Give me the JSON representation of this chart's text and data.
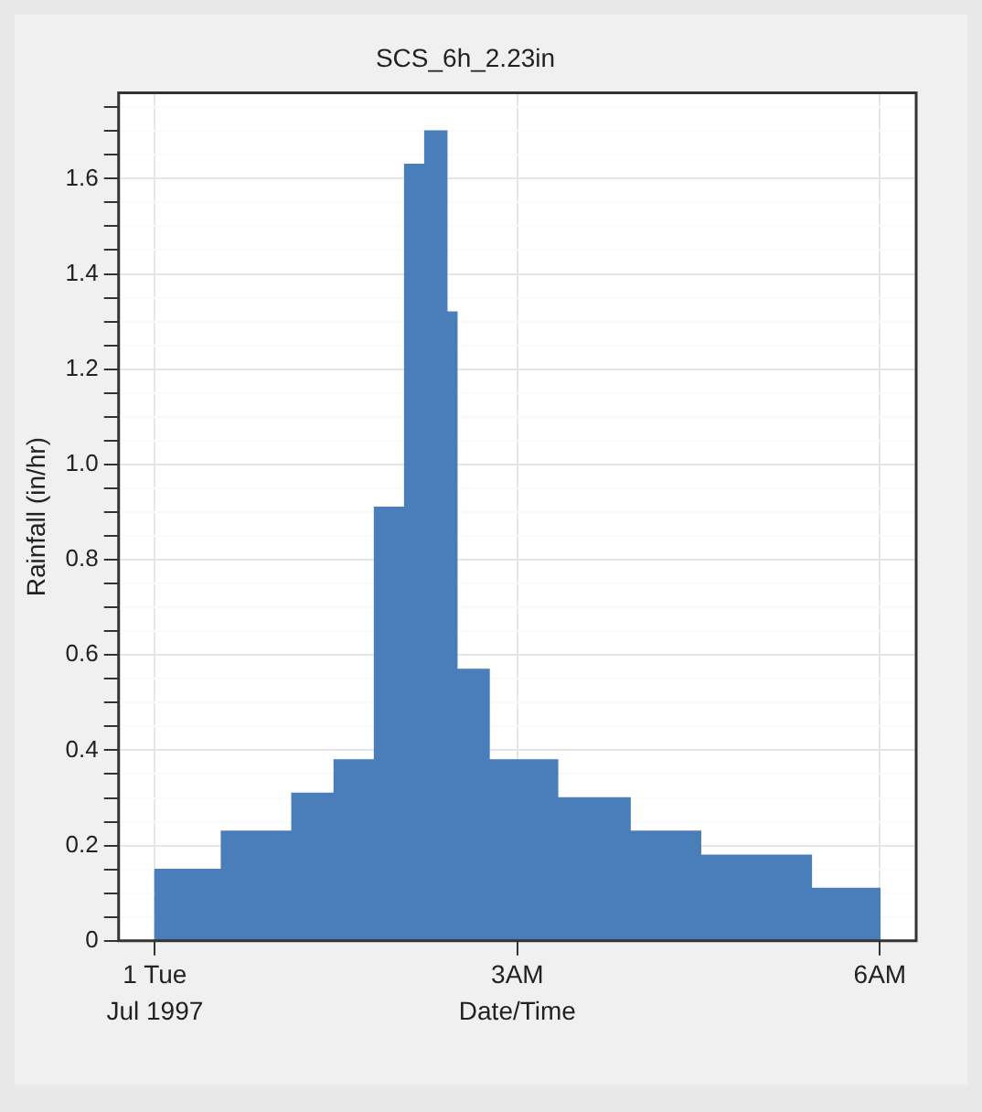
{
  "chart_data": {
    "type": "histogram",
    "title": "SCS_6h_2.23in",
    "xlabel": "Date/Time",
    "ylabel": "Rainfall (in/hr)",
    "bins": [
      "1997-07-01T00:00",
      "1997-07-01T00:33",
      "1997-07-01T01:08",
      "1997-07-01T01:29",
      "1997-07-01T01:49",
      "1997-07-01T02:04",
      "1997-07-01T02:14",
      "1997-07-01T02:25",
      "1997-07-01T02:30",
      "1997-07-01T02:46",
      "1997-07-01T03:20",
      "1997-07-01T03:56",
      "1997-07-01T04:31",
      "1997-07-01T05:26",
      "1997-07-01T06:00"
    ],
    "values": [
      0.15,
      0.23,
      0.31,
      0.38,
      0.91,
      1.63,
      1.7,
      1.32,
      0.57,
      0.38,
      0.3,
      0.23,
      0.18,
      0.11
    ],
    "color": "#4a7ebb",
    "xlim": [
      "1997-06-30T23:42",
      "1997-07-01T06:18"
    ],
    "xticks": [
      {
        "value": "1997-07-01T00:00",
        "label": "1 Tue"
      },
      {
        "value": "1997-07-01T03:00",
        "label": "3AM"
      },
      {
        "value": "1997-07-01T06:00",
        "label": "6AM"
      }
    ],
    "ylim": [
      0,
      1.78
    ],
    "yticks": [
      0,
      {
        "value": 0.05,
        "label": null
      },
      {
        "value": 0.1,
        "label": null
      },
      {
        "value": 0.15,
        "label": null
      },
      0.2,
      {
        "value": 0.25,
        "label": null
      },
      {
        "value": 0.3,
        "label": null
      },
      {
        "value": 0.35,
        "label": null
      },
      0.4,
      {
        "value": 0.45,
        "label": null
      },
      {
        "value": 0.5,
        "label": null
      },
      {
        "value": 0.55,
        "label": null
      },
      0.6,
      {
        "value": 0.65,
        "label": null
      },
      {
        "value": 0.7,
        "label": null
      },
      {
        "value": 0.75,
        "label": null
      },
      0.8,
      {
        "value": 0.85,
        "label": null
      },
      {
        "value": 0.9,
        "label": null
      },
      {
        "value": 0.95,
        "label": null
      },
      {
        "value": 1.0,
        "label": "1.0"
      },
      {
        "value": 1.05,
        "label": null
      },
      {
        "value": 1.1,
        "label": null
      },
      {
        "value": 1.15,
        "label": null
      },
      1.2,
      {
        "value": 1.25,
        "label": null
      },
      {
        "value": 1.3,
        "label": null
      },
      {
        "value": 1.35,
        "label": null
      },
      1.4,
      {
        "value": 1.45,
        "label": null
      },
      {
        "value": 1.5,
        "label": null
      },
      {
        "value": 1.55,
        "label": null
      },
      1.6,
      {
        "value": 1.65,
        "label": null
      },
      {
        "value": 1.7,
        "label": null
      },
      {
        "value": 1.75,
        "label": null
      }
    ],
    "annotations": [
      "Jul 1997"
    ],
    "grid": true
  }
}
